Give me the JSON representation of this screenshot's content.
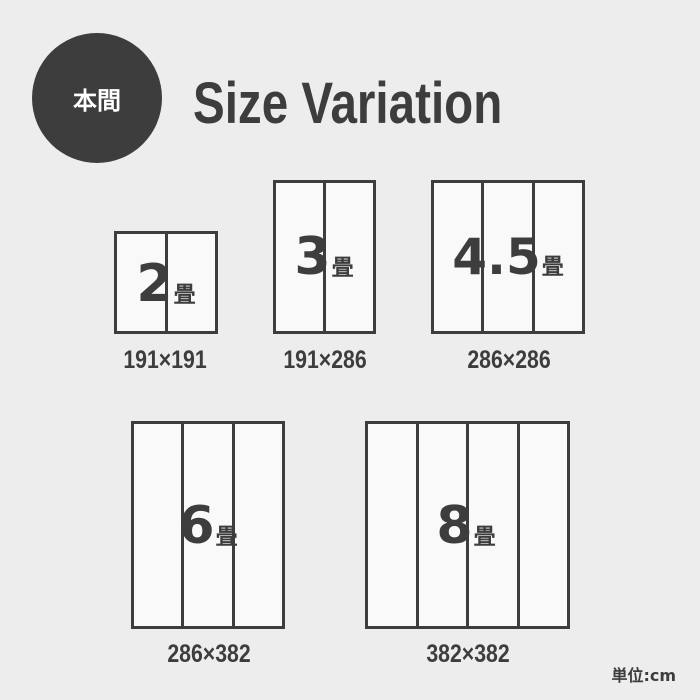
{
  "badge": "本間",
  "title": "Size Variation",
  "mats": [
    {
      "size": "2",
      "unit": "畳",
      "dimensions": "191×191",
      "panels": 2
    },
    {
      "size": "3",
      "unit": "畳",
      "dimensions": "191×286",
      "panels": 2
    },
    {
      "size": "4.5",
      "unit": "畳",
      "dimensions": "286×286",
      "panels": 3
    },
    {
      "size": "6",
      "unit": "畳",
      "dimensions": "286×382",
      "panels": 3
    },
    {
      "size": "8",
      "unit": "畳",
      "dimensions": "382×382",
      "panels": 4
    }
  ],
  "unit_note": "単位:cm",
  "colors": {
    "ink": "#3d3d3d",
    "background": "#ededed",
    "mat": "#f9f9f9"
  }
}
